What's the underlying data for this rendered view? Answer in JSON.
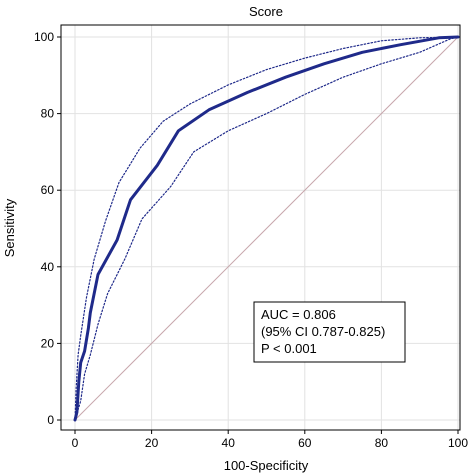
{
  "chart_data": {
    "type": "line",
    "title": "Score",
    "xlabel": "100-Specificity",
    "ylabel": "Sensitivity",
    "xlim": [
      0,
      100
    ],
    "ylim": [
      0,
      100
    ],
    "x_ticks": [
      0,
      20,
      40,
      60,
      80,
      100
    ],
    "y_ticks": [
      0,
      20,
      40,
      60,
      80,
      100
    ],
    "grid": true,
    "series": [
      {
        "role": "roc",
        "color": "#1f2a8a",
        "points": [
          [
            0,
            0
          ],
          [
            0.5,
            2
          ],
          [
            1,
            10
          ],
          [
            1.5,
            15
          ],
          [
            2.5,
            18
          ],
          [
            3.5,
            24
          ],
          [
            4,
            28
          ],
          [
            6,
            38
          ],
          [
            11,
            47
          ],
          [
            14.5,
            57.5
          ],
          [
            21.5,
            66.5
          ],
          [
            27,
            75.5
          ],
          [
            35,
            81
          ],
          [
            45,
            85.5
          ],
          [
            55,
            89.5
          ],
          [
            65,
            93
          ],
          [
            75,
            96
          ],
          [
            85,
            98
          ],
          [
            95,
            99.8
          ],
          [
            100,
            100
          ]
        ]
      },
      {
        "role": "ci-upper",
        "color": "#1f2a8a",
        "points": [
          [
            0,
            0
          ],
          [
            0.3,
            8
          ],
          [
            0.8,
            17
          ],
          [
            1.5,
            22
          ],
          [
            3,
            32
          ],
          [
            5,
            42
          ],
          [
            8,
            52
          ],
          [
            11.5,
            62
          ],
          [
            17,
            71
          ],
          [
            23,
            78
          ],
          [
            30,
            82.5
          ],
          [
            40,
            87.5
          ],
          [
            50,
            91.5
          ],
          [
            60,
            94.5
          ],
          [
            70,
            97
          ],
          [
            80,
            99
          ],
          [
            90,
            99.8
          ],
          [
            100,
            100
          ]
        ]
      },
      {
        "role": "ci-lower",
        "color": "#1f2a8a",
        "points": [
          [
            0,
            0
          ],
          [
            1.5,
            5
          ],
          [
            2.5,
            12
          ],
          [
            4,
            17
          ],
          [
            6,
            25
          ],
          [
            8.5,
            33
          ],
          [
            13,
            42
          ],
          [
            17.5,
            52.5
          ],
          [
            25,
            61
          ],
          [
            31,
            70
          ],
          [
            40,
            75.5
          ],
          [
            50,
            80
          ],
          [
            60,
            85
          ],
          [
            70,
            89.5
          ],
          [
            80,
            93
          ],
          [
            90,
            96
          ],
          [
            98,
            99.5
          ],
          [
            100,
            100
          ]
        ]
      },
      {
        "role": "reference",
        "color": "#c8a7ad",
        "points": [
          [
            0,
            0
          ],
          [
            100,
            100
          ]
        ]
      }
    ],
    "annotation": {
      "lines": [
        "AUC = 0.806",
        "(95% CI 0.787-0.825)",
        "P < 0.001"
      ],
      "placement": "bottom-right"
    }
  }
}
